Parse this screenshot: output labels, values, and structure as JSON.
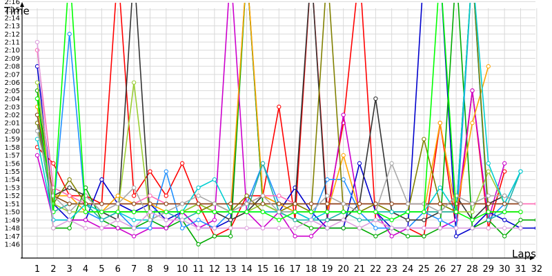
{
  "chart_data": {
    "type": "line",
    "xlabel": "Laps",
    "ylabel": "Time",
    "x": [
      1,
      2,
      3,
      4,
      5,
      6,
      7,
      8,
      9,
      10,
      11,
      12,
      13,
      14,
      15,
      16,
      17,
      18,
      19,
      20,
      21,
      22,
      23,
      24,
      25,
      26,
      27,
      28,
      29,
      30,
      31,
      32
    ],
    "y_ticks": [
      "1:46",
      "1:47",
      "1:48",
      "1:49",
      "1:50",
      "1:51",
      "1:52",
      "1:53",
      "1:54",
      "1:55",
      "1:56",
      "1:57",
      "1:58",
      "1:59",
      "2:00",
      "2:01",
      "2:02",
      "2:03",
      "2:04",
      "2:05",
      "2:06",
      "2:07",
      "2:08",
      "2:09",
      "2:10",
      "2:11",
      "2:12",
      "2:13",
      "2:14",
      "2:15",
      "2:16"
    ],
    "ylim_seconds": [
      105,
      137
    ],
    "grid": true,
    "series": [
      {
        "color": "#ff0000",
        "values": [
          118,
          116,
          112,
          112,
          111,
          140,
          112,
          115,
          112,
          116,
          111,
          107,
          108,
          112,
          112,
          123,
          109,
          140,
          110,
          121,
          140,
          109,
          108,
          108,
          107,
          121,
          108,
          125,
          108,
          115,
          null,
          null
        ]
      },
      {
        "color": "#0000cc",
        "values": [
          128,
          111,
          109,
          109,
          114,
          111,
          110,
          111,
          109,
          110,
          108,
          108,
          109,
          140,
          111,
          110,
          113,
          110,
          108,
          108,
          116,
          110,
          108,
          108,
          140,
          140,
          107,
          108,
          110,
          109,
          108,
          108
        ]
      },
      {
        "color": "#00aa00",
        "values": [
          125,
          108,
          108,
          113,
          109,
          108,
          108,
          109,
          108,
          109,
          106,
          107,
          107,
          140,
          111,
          110,
          109,
          108,
          108,
          108,
          108,
          107,
          108,
          107,
          107,
          108,
          140,
          108,
          109,
          107,
          109,
          109
        ]
      },
      {
        "color": "#cc00cc",
        "values": [
          117,
          109,
          109,
          109,
          108,
          108,
          107,
          108,
          108,
          110,
          108,
          109,
          140,
          110,
          108,
          110,
          107,
          107,
          109,
          122,
          110,
          110,
          107,
          108,
          108,
          108,
          109,
          125,
          109,
          116,
          null,
          null
        ]
      },
      {
        "color": "#1e90ff",
        "values": [
          122,
          110,
          132,
          110,
          109,
          110,
          108,
          108,
          115,
          108,
          109,
          108,
          110,
          111,
          116,
          111,
          110,
          109,
          114,
          114,
          110,
          108,
          108,
          108,
          110,
          109,
          108,
          140,
          109,
          111,
          115,
          null
        ]
      },
      {
        "color": "#333333",
        "values": [
          124,
          112,
          113,
          112,
          110,
          109,
          140,
          109,
          110,
          110,
          111,
          110,
          109,
          110,
          112,
          111,
          111,
          140,
          109,
          109,
          111,
          124,
          110,
          109,
          109,
          110,
          112,
          109,
          111,
          112,
          111,
          null
        ]
      },
      {
        "color": "#9acd32",
        "values": [
          126,
          111,
          110,
          110,
          110,
          110,
          126,
          109,
          110,
          110,
          111,
          110,
          110,
          110,
          111,
          110,
          110,
          110,
          110,
          110,
          110,
          110,
          110,
          110,
          110,
          110,
          110,
          110,
          115,
          111,
          null,
          null
        ]
      },
      {
        "color": "#ffa500",
        "values": [
          123,
          112,
          112,
          110,
          110,
          112,
          111,
          111,
          110,
          110,
          110,
          110,
          110,
          140,
          112,
          111,
          110,
          110,
          110,
          117,
          110,
          110,
          110,
          110,
          110,
          121,
          110,
          121,
          128,
          null,
          null,
          null
        ]
      },
      {
        "color": "#20b2aa",
        "values": [
          121,
          110,
          111,
          111,
          109,
          110,
          110,
          110,
          110,
          109,
          110,
          110,
          110,
          110,
          116,
          110,
          109,
          109,
          109,
          110,
          109,
          109,
          109,
          110,
          110,
          110,
          110,
          140,
          109,
          110,
          115,
          null
        ]
      },
      {
        "color": "#ff69b4",
        "values": [
          130,
          113,
          112,
          111,
          111,
          111,
          111,
          112,
          111,
          111,
          111,
          111,
          111,
          111,
          112,
          112,
          111,
          111,
          111,
          111,
          111,
          111,
          111,
          111,
          111,
          111,
          111,
          111,
          111,
          111,
          111,
          111
        ]
      },
      {
        "color": "#808000",
        "values": [
          121,
          111,
          114,
          111,
          110,
          110,
          110,
          110,
          110,
          110,
          110,
          111,
          110,
          112,
          110,
          110,
          111,
          110,
          140,
          110,
          110,
          111,
          110,
          110,
          119,
          111,
          110,
          140,
          110,
          110,
          110,
          null
        ]
      },
      {
        "color": "#00ced1",
        "values": [
          119,
          109,
          109,
          111,
          110,
          110,
          109,
          109,
          110,
          110,
          113,
          114,
          110,
          110,
          110,
          110,
          110,
          109,
          110,
          110,
          110,
          110,
          110,
          110,
          110,
          113,
          110,
          140,
          116,
          111,
          115,
          null
        ]
      },
      {
        "color": "#8b4513",
        "values": [
          122,
          112,
          111,
          111,
          111,
          111,
          111,
          111,
          111,
          111,
          111,
          111,
          111,
          111,
          111,
          111,
          111,
          111,
          111,
          111,
          111,
          111,
          111,
          111,
          111,
          111,
          111,
          111,
          111,
          111,
          111,
          null
        ]
      },
      {
        "color": "#a9a9a9",
        "values": [
          120,
          112,
          110,
          112,
          110,
          111,
          113,
          109,
          110,
          111,
          112,
          111,
          110,
          111,
          112,
          110,
          110,
          110,
          112,
          111,
          110,
          110,
          116,
          111,
          111,
          110,
          112,
          111,
          112,
          112,
          111,
          null
        ]
      },
      {
        "color": "#00ff00",
        "values": [
          124,
          110,
          140,
          110,
          110,
          110,
          110,
          110,
          110,
          110,
          110,
          110,
          110,
          110,
          110,
          109,
          110,
          110,
          110,
          110,
          110,
          110,
          109,
          110,
          110,
          140,
          110,
          109,
          110,
          110,
          110,
          null
        ]
      },
      {
        "color": "#dda0dd",
        "values": [
          131,
          108,
          109,
          108,
          108,
          109,
          108,
          110,
          109,
          109,
          108,
          108,
          108,
          108,
          108,
          108,
          108,
          109,
          108,
          109,
          108,
          109,
          108,
          108,
          108,
          108,
          108,
          108,
          108,
          108,
          108,
          null
        ]
      }
    ]
  }
}
